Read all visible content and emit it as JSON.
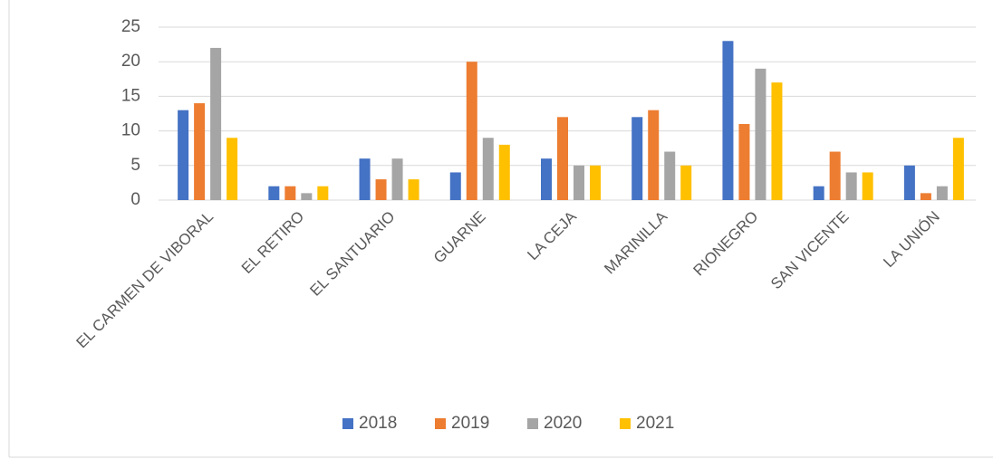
{
  "chart_data": {
    "type": "bar",
    "categories": [
      "EL CARMEN DE VIBORAL",
      "EL RETIRO",
      "EL SANTUARIO",
      "GUARNE",
      "LA CEJA",
      "MARINILLA",
      "RIONEGRO",
      "SAN VICENTE",
      "LA UNIÓN"
    ],
    "series": [
      {
        "name": "2018",
        "color": "#4472c4",
        "values": [
          13,
          2,
          6,
          4,
          6,
          12,
          23,
          2,
          5
        ]
      },
      {
        "name": "2019",
        "color": "#ed7d31",
        "values": [
          14,
          2,
          3,
          20,
          12,
          13,
          11,
          7,
          1
        ]
      },
      {
        "name": "2020",
        "color": "#a5a5a5",
        "values": [
          22,
          1,
          6,
          9,
          5,
          7,
          19,
          4,
          2
        ]
      },
      {
        "name": "2021",
        "color": "#ffc000",
        "values": [
          9,
          2,
          3,
          8,
          5,
          5,
          17,
          4,
          9
        ]
      }
    ],
    "ylim": [
      0,
      25
    ],
    "yticks": [
      0,
      5,
      10,
      15,
      20,
      25
    ],
    "grid": true,
    "legend": "bottom"
  }
}
